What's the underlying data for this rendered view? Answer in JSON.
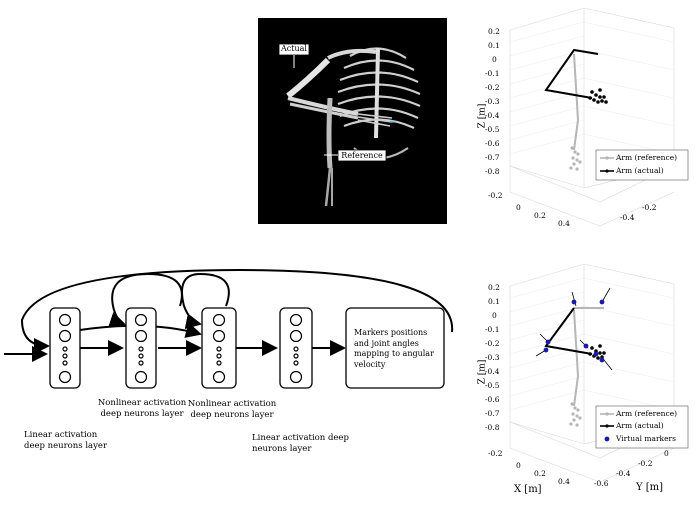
{
  "skeleton_panel": {
    "label_actual": "Actual",
    "label_reference": "Reference"
  },
  "plot_top": {
    "z_label": "Z [m]",
    "z_ticks": [
      "0.2",
      "0.1",
      "0",
      "-0.1",
      "-0.2",
      "-0.3",
      "-0.4",
      "-0.5",
      "-0.6",
      "-0.7",
      "-0.8"
    ],
    "x_ticks": [
      "-0.2",
      "0",
      "0.2",
      "0.4"
    ],
    "y_ticks": [
      "-0.4",
      "-0.2"
    ],
    "legend": [
      "Arm (reference)",
      "Arm (actual)"
    ]
  },
  "plot_bottom": {
    "z_label": "Z [m]",
    "x_label": "X [m]",
    "y_label": "Y [m]",
    "z_ticks": [
      "0.2",
      "0.1",
      "0",
      "-0.1",
      "-0.2",
      "-0.3",
      "-0.4",
      "-0.5",
      "-0.6",
      "-0.7",
      "-0.8"
    ],
    "x_ticks": [
      "-0.2",
      "0",
      "0.2",
      "0.4"
    ],
    "y_ticks": [
      "-0.6",
      "-0.4",
      "-0.2",
      "0"
    ],
    "legend": [
      "Arm (reference)",
      "Arm (actual)",
      "Virtual markers"
    ]
  },
  "network": {
    "output_box_text": "Markers positions and joint angles mapping to angular velocity",
    "label_nonlinear_1": "Nonlinear activation deep neurons layer",
    "label_nonlinear_2": "Nonlinear activation deep neurons layer",
    "label_linear_1": "Linear activation deep neurons layer",
    "label_linear_2": "Linear activation deep neurons layer"
  },
  "colors": {
    "reference": "#b5b5b5",
    "actual": "#000000",
    "virtual_markers": "#1a1aaa",
    "skeleton_bg": "#000000"
  }
}
